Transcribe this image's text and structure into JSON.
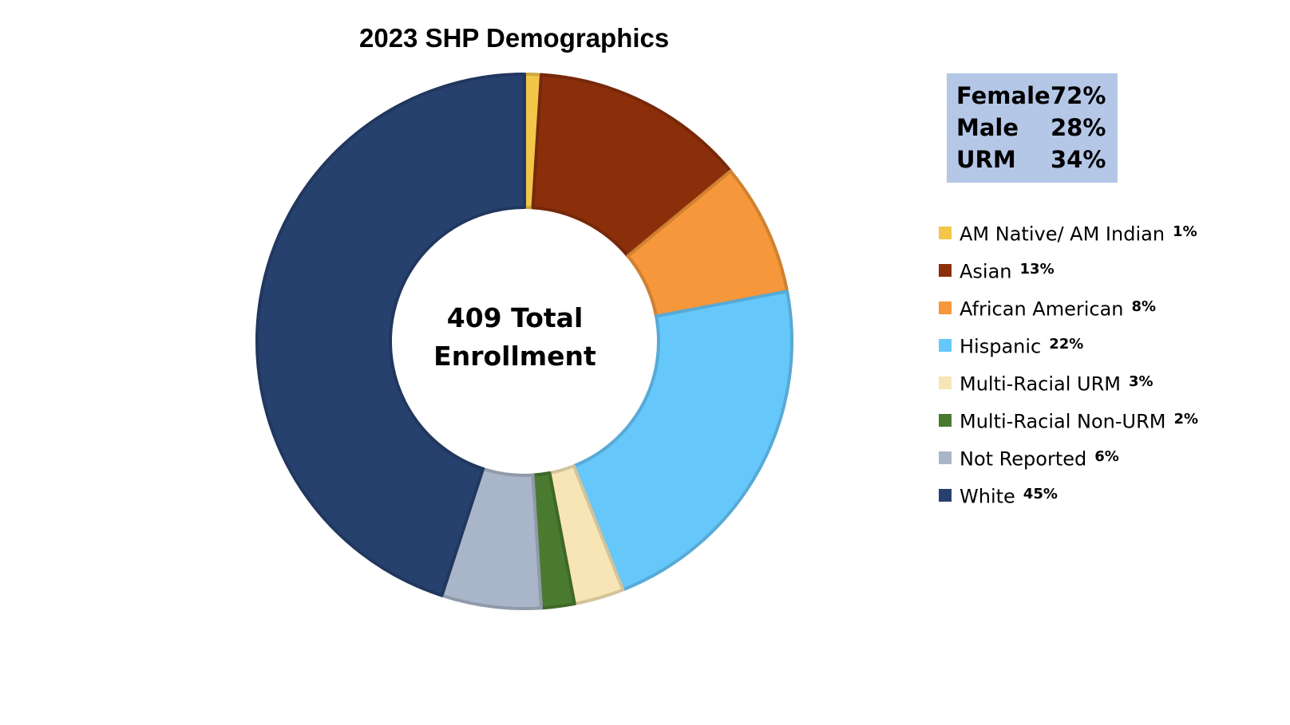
{
  "chart_data": {
    "type": "pie",
    "title": "2023 SHP Demographics",
    "center_label": [
      "409 Total",
      "Enrollment"
    ],
    "categories": [
      "AM Native/ AM Indian",
      "Asian",
      "African American",
      "Hispanic",
      "Multi-Racial URM",
      "Multi-Racial Non-URM",
      "Not Reported",
      "White"
    ],
    "values": [
      1,
      13,
      8,
      22,
      3,
      2,
      6,
      45
    ],
    "value_labels": [
      "1%",
      "13%",
      "8%",
      "22%",
      "3%",
      "2%",
      "6%",
      "45%"
    ],
    "colors": [
      "#f2c649",
      "#8b2f0b",
      "#f5973a",
      "#66c8fa",
      "#f7e5b5",
      "#4a7a30",
      "#a9b5c8",
      "#27416f"
    ],
    "legend_position": "right",
    "summary": [
      {
        "label": "Female",
        "value": "72%"
      },
      {
        "label": "Male",
        "value": "28%"
      },
      {
        "label": "URM",
        "value": "34%"
      }
    ]
  }
}
